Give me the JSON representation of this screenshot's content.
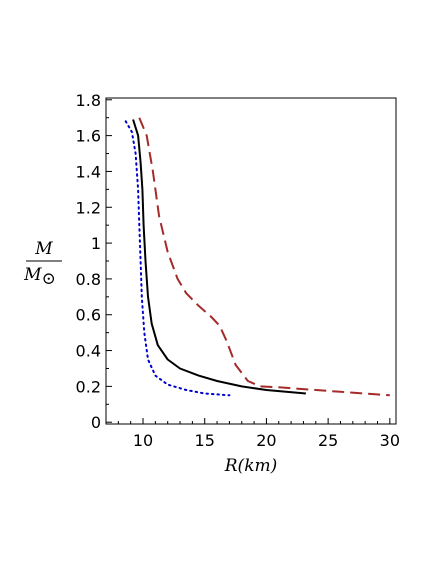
{
  "chart_data": {
    "type": "line",
    "title": "",
    "xlabel": {
      "italic": "R",
      "open": "(",
      "unit": "km",
      "close": ")"
    },
    "ylabel": {
      "numerator": "M",
      "denominator": "M",
      "subscript": "⊙"
    },
    "xlim": [
      7,
      30.5
    ],
    "ylim": [
      -0.01,
      1.81
    ],
    "xticks": [
      10,
      15,
      20,
      25,
      30
    ],
    "xtick_labels": [
      "10",
      "15",
      "20",
      "25",
      "30"
    ],
    "yticks": [
      0,
      0.2,
      0.4,
      0.6,
      0.8,
      1.0,
      1.2,
      1.4,
      1.6,
      1.8
    ],
    "ytick_labels": [
      "0",
      "0.2",
      "0.4",
      "0.6",
      "0.8",
      "1",
      "1.2",
      "1.4",
      "1.6",
      "1.8"
    ],
    "grid": false,
    "legend": "none",
    "series": [
      {
        "color": "#000000",
        "style": "solid",
        "points": [
          [
            9.2,
            1.69
          ],
          [
            9.6,
            1.6
          ],
          [
            9.8,
            1.45
          ],
          [
            9.95,
            1.3
          ],
          [
            10.05,
            1.1
          ],
          [
            10.2,
            0.9
          ],
          [
            10.4,
            0.7
          ],
          [
            10.7,
            0.55
          ],
          [
            11.2,
            0.43
          ],
          [
            12,
            0.35
          ],
          [
            13,
            0.3
          ],
          [
            14.5,
            0.26
          ],
          [
            16,
            0.23
          ],
          [
            18,
            0.2
          ],
          [
            20,
            0.18
          ],
          [
            23.2,
            0.16
          ]
        ]
      },
      {
        "color": "#0000cc",
        "style": "dotted",
        "points": [
          [
            8.6,
            1.68
          ],
          [
            9.1,
            1.62
          ],
          [
            9.4,
            1.5
          ],
          [
            9.6,
            1.3
          ],
          [
            9.7,
            1.1
          ],
          [
            9.8,
            0.9
          ],
          [
            9.9,
            0.7
          ],
          [
            10.1,
            0.5
          ],
          [
            10.4,
            0.35
          ],
          [
            11,
            0.26
          ],
          [
            12,
            0.21
          ],
          [
            13.5,
            0.18
          ],
          [
            15,
            0.16
          ],
          [
            17,
            0.15
          ]
        ]
      },
      {
        "color": "#a52a2a",
        "style": "dashed",
        "points": [
          [
            9.7,
            1.7
          ],
          [
            10.3,
            1.6
          ],
          [
            10.8,
            1.4
          ],
          [
            11.3,
            1.15
          ],
          [
            12,
            0.95
          ],
          [
            12.8,
            0.8
          ],
          [
            13.5,
            0.72
          ],
          [
            14.5,
            0.65
          ],
          [
            15.5,
            0.59
          ],
          [
            16.2,
            0.54
          ],
          [
            16.8,
            0.45
          ],
          [
            17.5,
            0.32
          ],
          [
            18.5,
            0.23
          ],
          [
            19.5,
            0.2
          ],
          [
            21,
            0.195
          ],
          [
            23,
            0.185
          ],
          [
            26,
            0.17
          ],
          [
            30,
            0.15
          ]
        ]
      }
    ]
  }
}
